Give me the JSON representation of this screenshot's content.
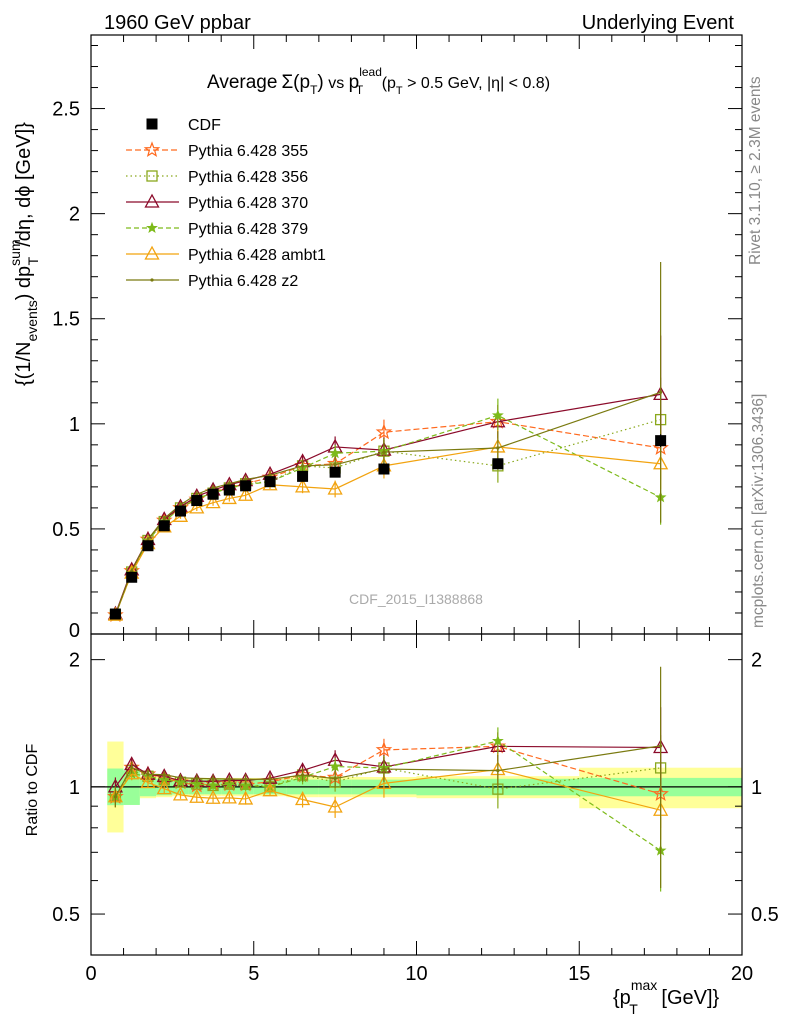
{
  "header": {
    "left": "1960 GeV ppbar",
    "right": "Underlying Event"
  },
  "main_title": {
    "avg": "Average",
    "sigma": "Σ(p",
    "sub_T": "T",
    "close": ")",
    "vs": " vs ",
    "p": "p",
    "sup_lead": "lead",
    "cut_open": " (p",
    "cut_rest": " > 0.5 GeV, |η| < 0.8)"
  },
  "side_labels": {
    "rivet": "Rivet 3.1.10, ≥ 2.3M events",
    "mcplots": "mcplots.cern.ch [arXiv:1306.3436]"
  },
  "watermark": "CDF_2015_I1388868",
  "ylabel_top": {
    "open": "{(1/N",
    "sub_events": "events",
    "mid": ") dp",
    "sup_sum": "sum",
    "sub_T": "T",
    "rest": "/dη, dϕ [GeV]}"
  },
  "ylabel_bottom": "Ratio to CDF",
  "xlabel": {
    "open": "{p",
    "sup_max": "max",
    "sub_T": "T",
    "rest": " [GeV]}"
  },
  "colors": {
    "CDF": "#000000",
    "355": "#ff6a1f",
    "356": "#8aa81c",
    "370": "#8b0a2a",
    "379": "#7dba1a",
    "ambt1": "#f2a30f",
    "z2": "#7a7a10",
    "band_inner": "#99ff99",
    "band_outer": "#ffff99"
  },
  "chart_data": {
    "type": "scatter",
    "xlim": [
      0,
      20
    ],
    "ylim_top": [
      0,
      2.85
    ],
    "ylim_ratio": [
      0.4,
      2.3
    ],
    "ratio_scale": "log",
    "x_ticks": [
      "0",
      "5",
      "10",
      "15",
      "20"
    ],
    "y_ticks_top": [
      "0",
      "0.5",
      "1",
      "1.5",
      "2",
      "2.5"
    ],
    "y_ticks_ratio": [
      "0.5",
      "1",
      "2"
    ],
    "legend_position": "top-left",
    "x": [
      0.75,
      1.25,
      1.75,
      2.25,
      2.75,
      3.25,
      3.75,
      4.25,
      4.75,
      5.5,
      6.5,
      7.5,
      9.0,
      12.5,
      17.5
    ],
    "data": {
      "name": "CDF",
      "values": [
        0.095,
        0.27,
        0.42,
        0.515,
        0.585,
        0.635,
        0.665,
        0.685,
        0.705,
        0.725,
        0.75,
        0.77,
        0.785,
        0.81,
        0.92
      ],
      "errors": [
        0.01,
        0.01,
        0.012,
        0.012,
        0.012,
        0.012,
        0.012,
        0.012,
        0.012,
        0.013,
        0.015,
        0.018,
        0.02,
        0.02,
        0.03
      ]
    },
    "band_inner": [
      [
        0.5,
        1.0,
        0.095,
        0.105
      ],
      [
        1.0,
        1.5,
        0.094,
        0.094
      ],
      [
        1.5,
        2.0,
        0.05,
        0.05
      ],
      [
        2.0,
        2.5,
        0.045,
        0.045
      ],
      [
        2.5,
        3.0,
        0.04,
        0.04
      ],
      [
        3.0,
        3.5,
        0.04,
        0.04
      ],
      [
        3.5,
        4.0,
        0.04,
        0.04
      ],
      [
        4.0,
        4.5,
        0.04,
        0.04
      ],
      [
        4.5,
        5.0,
        0.04,
        0.04
      ],
      [
        5.0,
        6.0,
        0.04,
        0.04
      ],
      [
        6.0,
        7.0,
        0.04,
        0.04
      ],
      [
        7.0,
        8.0,
        0.04,
        0.04
      ],
      [
        8.0,
        10.0,
        0.04,
        0.04
      ],
      [
        10.0,
        15.0,
        0.045,
        0.045
      ],
      [
        15.0,
        20.0,
        0.05,
        0.05
      ]
    ],
    "band_outer": [
      [
        0.5,
        1.0,
        0.22,
        0.28
      ],
      [
        1.0,
        1.5,
        0.07,
        0.07
      ],
      [
        1.5,
        2.0,
        0.06,
        0.06
      ],
      [
        2.0,
        2.5,
        0.055,
        0.055
      ],
      [
        2.5,
        3.0,
        0.05,
        0.05
      ],
      [
        3.0,
        3.5,
        0.05,
        0.05
      ],
      [
        3.5,
        4.0,
        0.05,
        0.05
      ],
      [
        4.0,
        4.5,
        0.05,
        0.05
      ],
      [
        4.5,
        5.0,
        0.05,
        0.05
      ],
      [
        5.0,
        6.0,
        0.05,
        0.05
      ],
      [
        6.0,
        7.0,
        0.055,
        0.055
      ],
      [
        7.0,
        8.0,
        0.055,
        0.055
      ],
      [
        8.0,
        10.0,
        0.055,
        0.055
      ],
      [
        10.0,
        15.0,
        0.06,
        0.06
      ],
      [
        15.0,
        20.0,
        0.11,
        0.11
      ]
    ],
    "series": [
      {
        "name": "Pythia 6.428 355",
        "key": "355",
        "marker": "star",
        "dash": "6,3",
        "values": [
          0.09,
          0.3,
          0.45,
          0.54,
          0.6,
          0.64,
          0.675,
          0.695,
          0.715,
          0.745,
          0.8,
          0.81,
          0.96,
          1.01,
          0.885
        ],
        "errors": [
          0.005,
          0.01,
          0.012,
          0.012,
          0.012,
          0.015,
          0.015,
          0.015,
          0.02,
          0.02,
          0.03,
          0.04,
          0.06,
          0.08,
          0.15
        ]
      },
      {
        "name": "Pythia 6.428 356",
        "key": "356",
        "marker": "square-open",
        "dash": "1.5,3",
        "values": [
          0.09,
          0.295,
          0.445,
          0.535,
          0.6,
          0.645,
          0.67,
          0.695,
          0.715,
          0.725,
          0.8,
          0.79,
          0.87,
          0.8,
          1.02
        ],
        "errors": [
          0.005,
          0.01,
          0.012,
          0.012,
          0.012,
          0.015,
          0.015,
          0.015,
          0.02,
          0.02,
          0.03,
          0.04,
          0.06,
          0.08,
          0.2
        ]
      },
      {
        "name": "Pythia 6.428 370",
        "key": "370",
        "marker": "triangle-open",
        "dash": "",
        "values": [
          0.095,
          0.305,
          0.45,
          0.545,
          0.605,
          0.655,
          0.685,
          0.71,
          0.73,
          0.76,
          0.82,
          0.89,
          0.875,
          1.01,
          1.14
        ],
        "errors": [
          0.005,
          0.01,
          0.012,
          0.012,
          0.012,
          0.015,
          0.015,
          0.015,
          0.02,
          0.02,
          0.03,
          0.05,
          0.06,
          0.08,
          0.28
        ]
      },
      {
        "name": "Pythia 6.428 379",
        "key": "379",
        "marker": "star-small",
        "dash": "5,3",
        "values": [
          0.09,
          0.29,
          0.445,
          0.535,
          0.6,
          0.645,
          0.67,
          0.695,
          0.71,
          0.725,
          0.79,
          0.86,
          0.87,
          1.04,
          0.65
        ],
        "errors": [
          0.005,
          0.01,
          0.012,
          0.012,
          0.012,
          0.015,
          0.015,
          0.015,
          0.02,
          0.02,
          0.03,
          0.04,
          0.06,
          0.08,
          0.13
        ]
      },
      {
        "name": "Pythia 6.428 ambt1",
        "key": "ambt1",
        "marker": "triangle-open",
        "dash": "",
        "values": [
          0.09,
          0.29,
          0.43,
          0.51,
          0.56,
          0.6,
          0.625,
          0.645,
          0.66,
          0.71,
          0.7,
          0.69,
          0.8,
          0.89,
          0.81
        ],
        "errors": [
          0.005,
          0.01,
          0.012,
          0.012,
          0.012,
          0.015,
          0.015,
          0.015,
          0.02,
          0.02,
          0.03,
          0.04,
          0.06,
          0.08,
          0.12
        ]
      },
      {
        "name": "Pythia 6.428 z2",
        "key": "z2",
        "marker": "dot",
        "dash": "",
        "values": [
          0.09,
          0.3,
          0.45,
          0.55,
          0.615,
          0.665,
          0.695,
          0.715,
          0.735,
          0.755,
          0.8,
          0.805,
          0.865,
          0.885,
          1.15
        ],
        "errors": [
          0.005,
          0.01,
          0.012,
          0.012,
          0.012,
          0.015,
          0.015,
          0.015,
          0.02,
          0.02,
          0.03,
          0.04,
          0.06,
          0.08,
          0.62
        ]
      }
    ]
  }
}
